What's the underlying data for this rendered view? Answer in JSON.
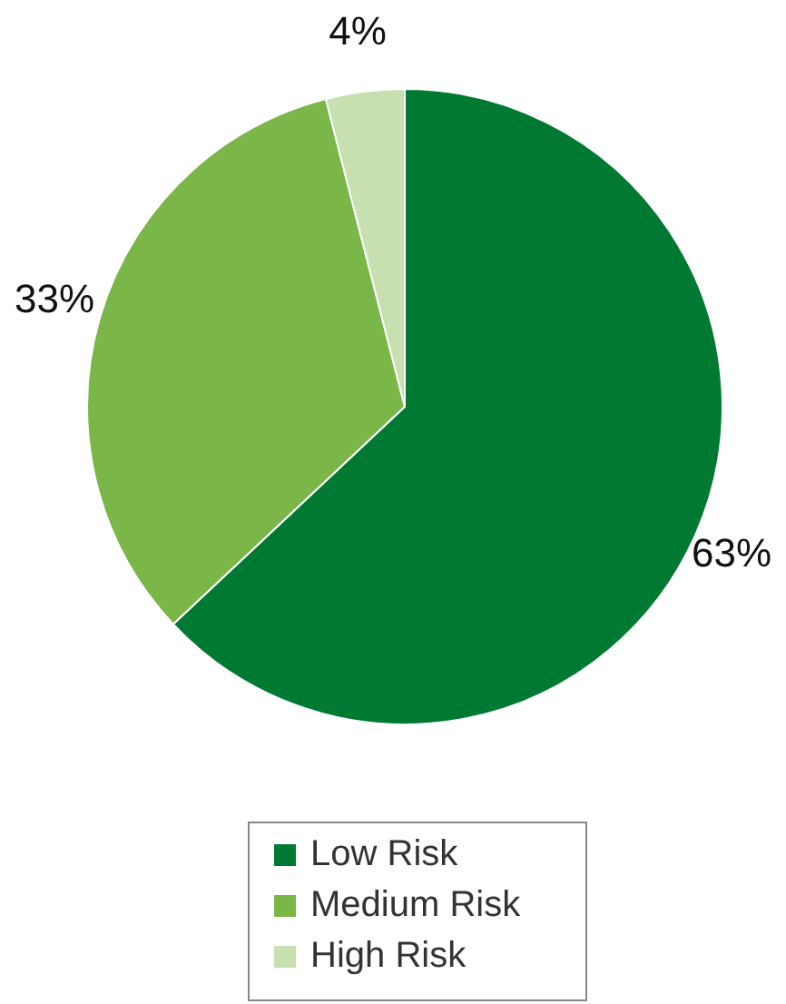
{
  "chart_data": {
    "type": "pie",
    "categories": [
      "Low Risk",
      "Medium Risk",
      "High Risk"
    ],
    "values": [
      63,
      33,
      4
    ],
    "colors": [
      "#007a33",
      "#7ab648",
      "#c8e0b0"
    ],
    "value_labels": [
      "63%",
      "33%",
      "4%"
    ],
    "legend": "bottom"
  }
}
